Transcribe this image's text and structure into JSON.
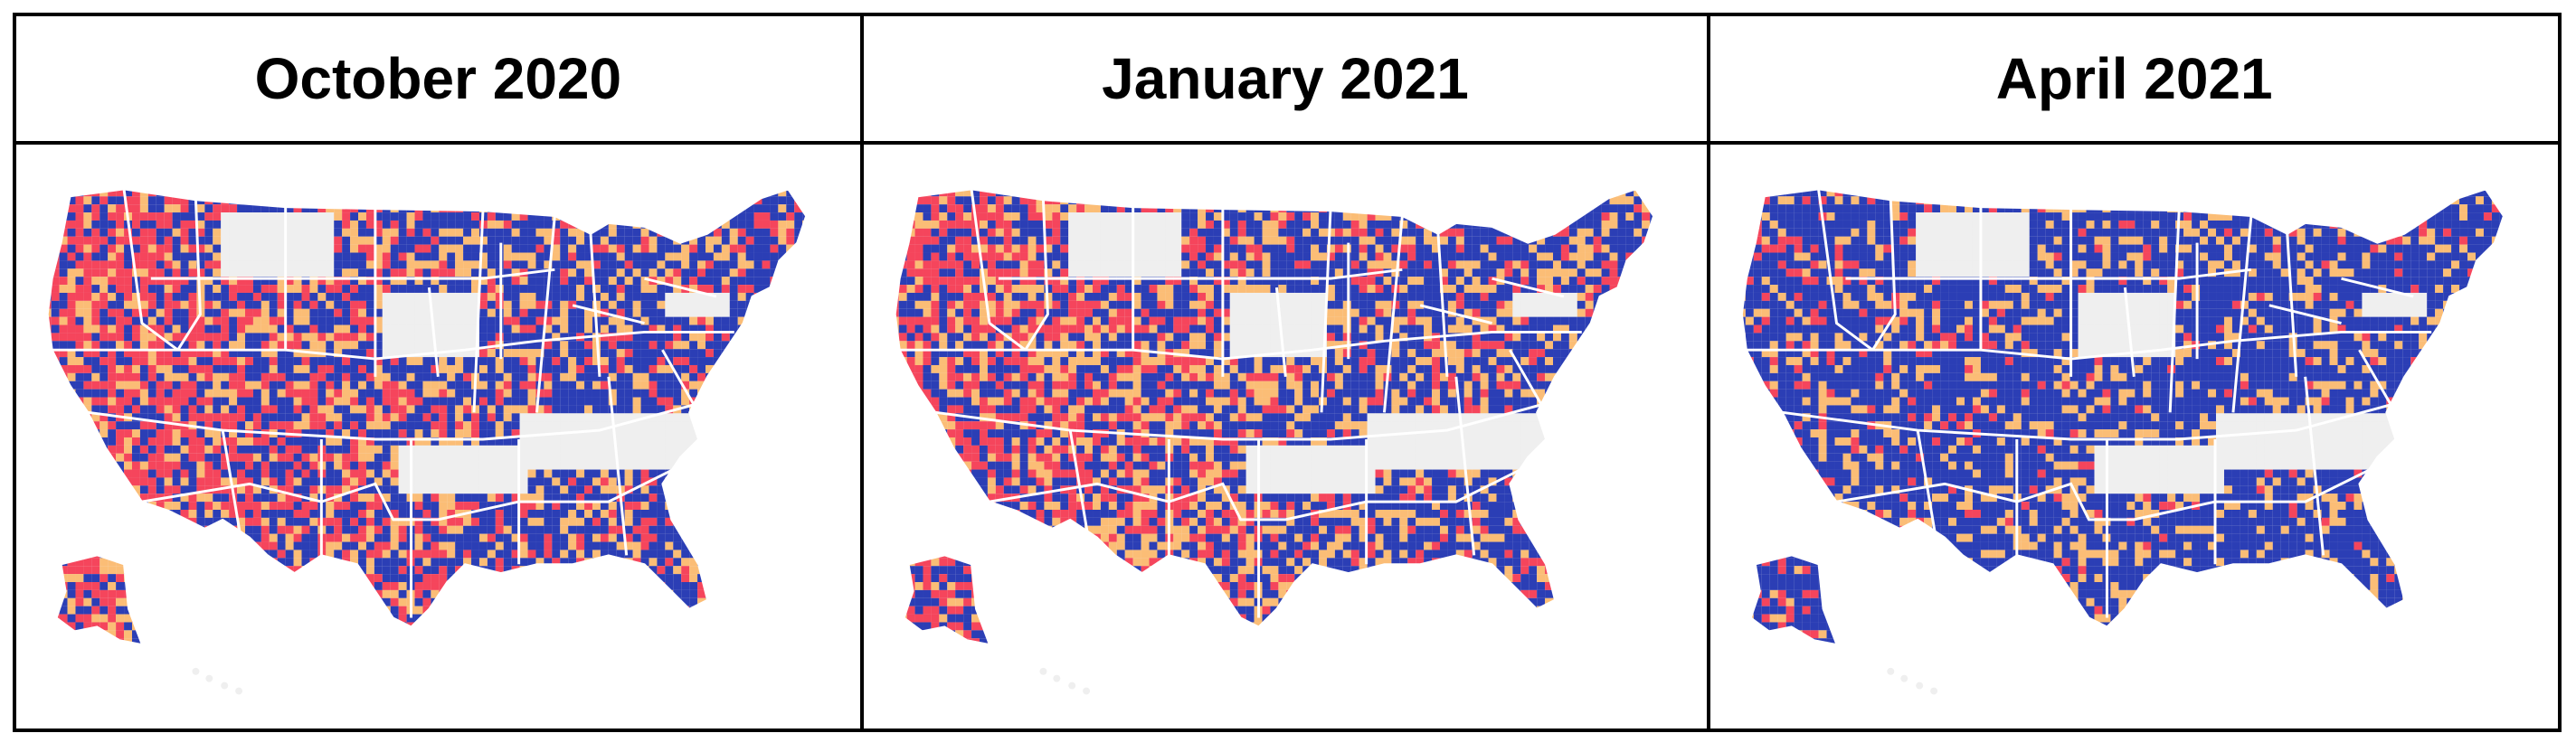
{
  "panels": [
    {
      "title": "October 2020",
      "seed": 11,
      "mix": {
        "red": 0.3,
        "orange": 0.22,
        "blue": 0.48
      }
    },
    {
      "title": "January 2021",
      "seed": 23,
      "mix": {
        "red": 0.27,
        "orange": 0.25,
        "blue": 0.48
      }
    },
    {
      "title": "April 2021",
      "seed": 37,
      "mix": {
        "red": 0.08,
        "orange": 0.2,
        "blue": 0.72
      }
    }
  ],
  "colors": {
    "red": "#f5455c",
    "orange": "#fbbd76",
    "blue": "#2b3eb5",
    "gray": "#efefef",
    "border": "#ffffff"
  }
}
